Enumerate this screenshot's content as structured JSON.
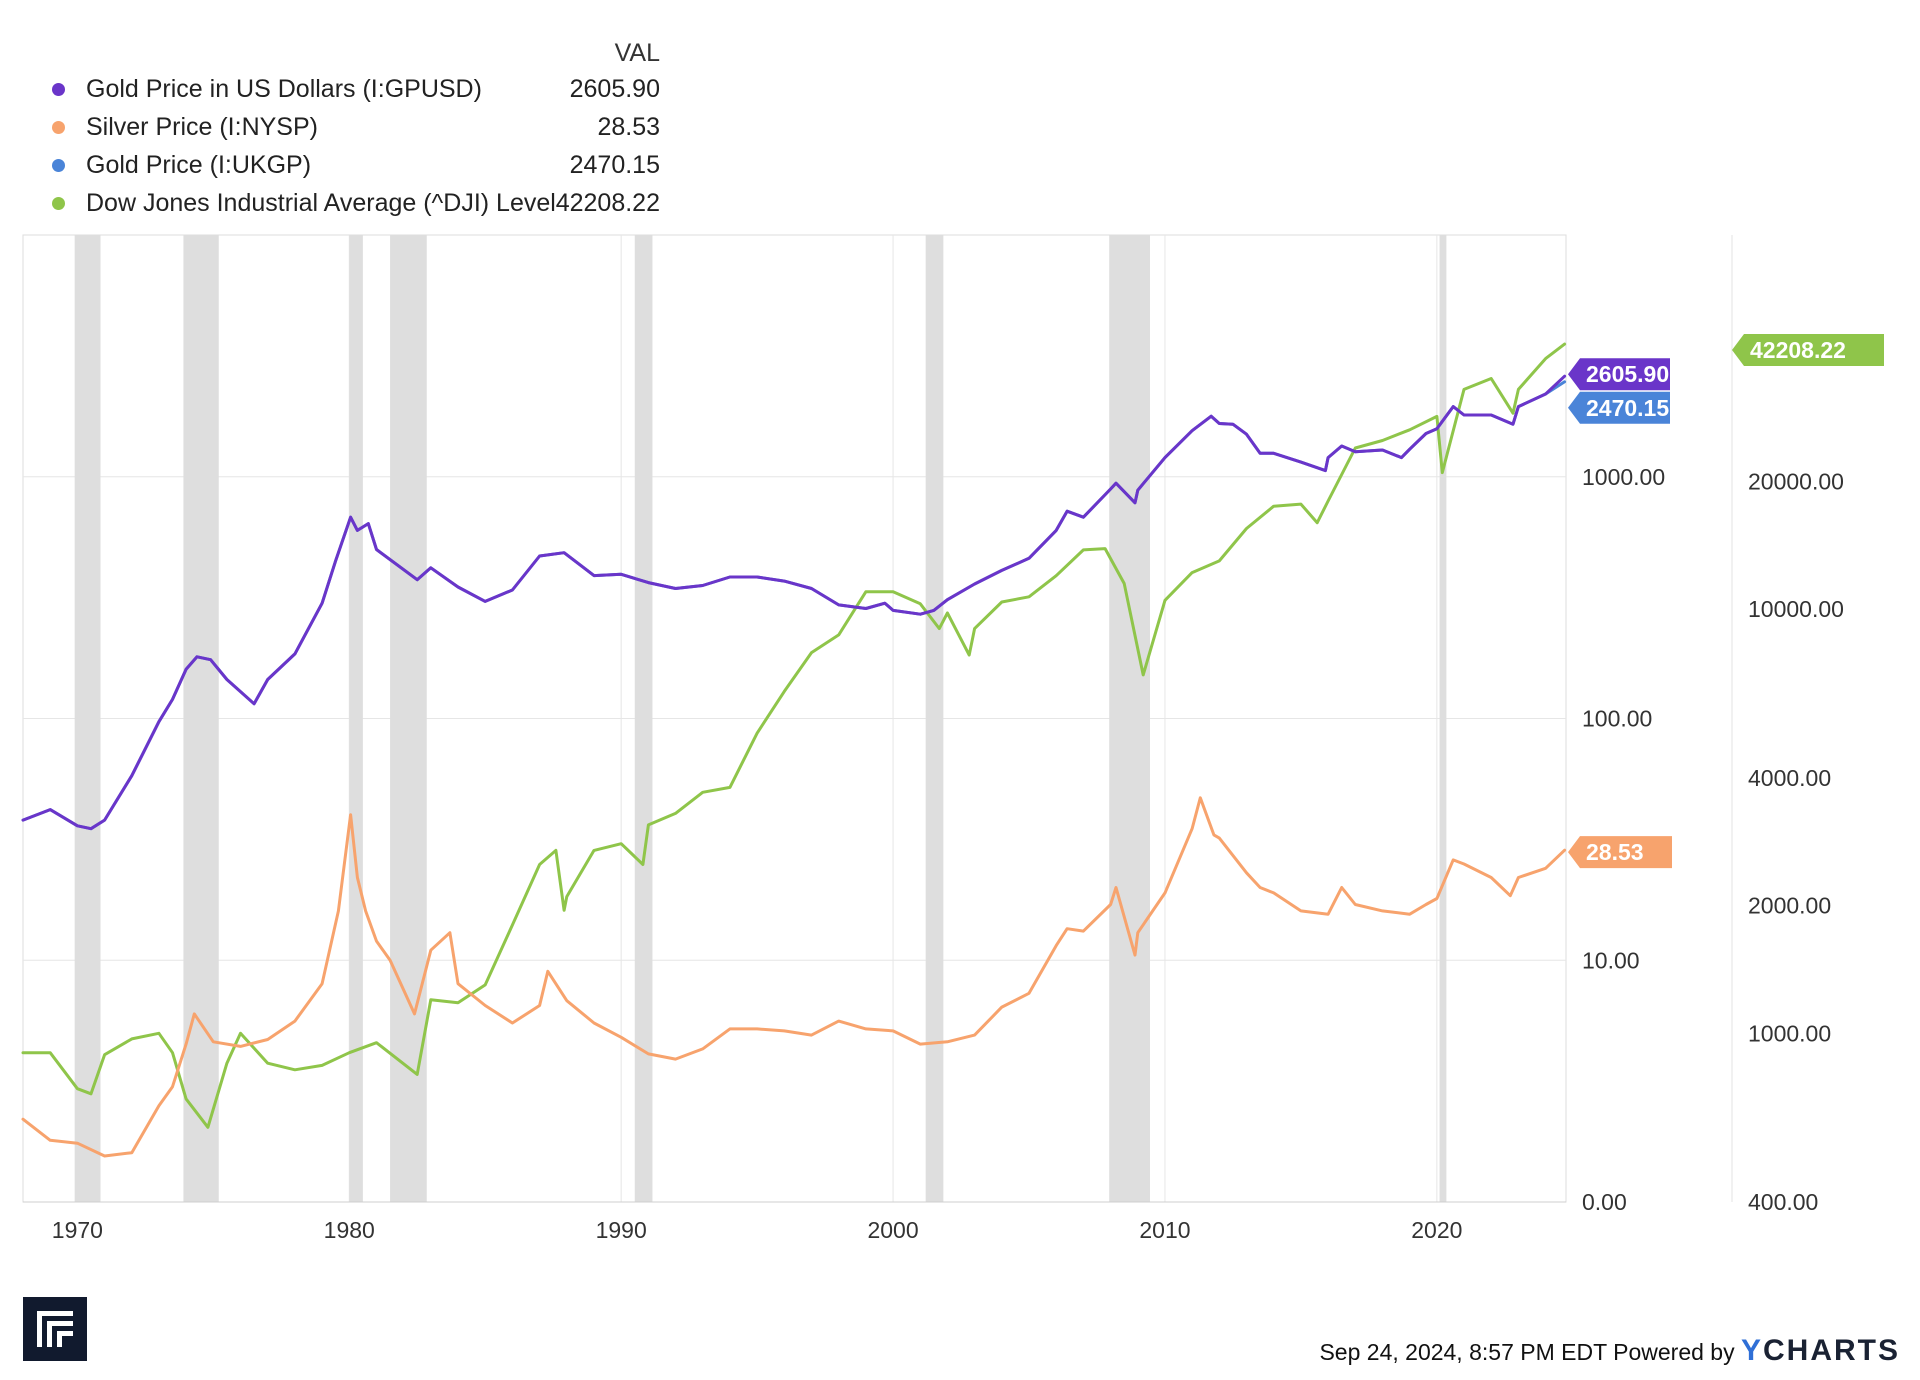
{
  "legend": {
    "header": "VAL",
    "items": [
      {
        "name": "Gold Price in US Dollars (I:GPUSD)",
        "value": "2605.90",
        "color": "#6a35c9"
      },
      {
        "name": "Silver Price (I:NYSP)",
        "value": "28.53",
        "color": "#f7a36d"
      },
      {
        "name": "Gold Price (I:UKGP)",
        "value": "2470.15",
        "color": "#4a84d8"
      },
      {
        "name": "Dow Jones Industrial Average (^DJI) Level",
        "value": "42208.22",
        "color": "#8fc54a"
      }
    ]
  },
  "footer": {
    "timestamp": "Sep 24, 2024, 8:57 PM EDT",
    "powered_by": "Powered by",
    "brand_first": "Y",
    "brand_rest": "CHARTS"
  },
  "chart_data": {
    "type": "line",
    "x_range": [
      1968.0,
      2024.75
    ],
    "x_ticks": [
      "1970",
      "1980",
      "1990",
      "2000",
      "2010",
      "2020"
    ],
    "x_tick_values": [
      1970,
      1980,
      1990,
      2000,
      2010,
      2020
    ],
    "y_left": {
      "scale": "log",
      "range": [
        1.0,
        10000.0
      ],
      "ticks": [
        "1000.00",
        "100.00",
        "10.00",
        "0.00"
      ],
      "tick_values": [
        1000,
        100,
        10,
        1
      ]
    },
    "y_right": {
      "scale": "log",
      "range": [
        400,
        76310
      ],
      "ticks": [
        "20000.00",
        "10000.00",
        "4000.00",
        "2000.00",
        "1000.00",
        "400.00"
      ],
      "tick_values": [
        20000,
        10000,
        4000,
        2000,
        1000,
        400
      ]
    },
    "recessions": [
      [
        1969.9,
        1970.85
      ],
      [
        1973.9,
        1975.2
      ],
      [
        1980.0,
        1980.5
      ],
      [
        1981.5,
        1982.85
      ],
      [
        1990.5,
        1991.15
      ],
      [
        2001.2,
        2001.85
      ],
      [
        2007.95,
        2009.45
      ],
      [
        2020.1,
        2020.35
      ]
    ],
    "series": [
      {
        "name": "Gold Price in US Dollars (I:GPUSD)",
        "axis": "left",
        "color": "#6a35c9",
        "end_label": "2605.90",
        "x": [
          1968,
          1969,
          1970,
          1970.5,
          1971,
          1972,
          1973,
          1973.5,
          1974,
          1974.4,
          1974.9,
          1975.5,
          1976.5,
          1977,
          1978,
          1979,
          1979.5,
          1980.05,
          1980.3,
          1980.7,
          1981,
          1982.5,
          1983,
          1984,
          1985,
          1986,
          1987,
          1987.9,
          1989,
          1990,
          1991,
          1992,
          1993,
          1994,
          1995,
          1996,
          1997,
          1998,
          1999,
          1999.7,
          2000,
          2001,
          2001.5,
          2002,
          2003,
          2004,
          2005,
          2006,
          2006.4,
          2007,
          2008,
          2008.2,
          2008.9,
          2009,
          2010,
          2011,
          2011.7,
          2012,
          2012.5,
          2013,
          2013.5,
          2014,
          2015,
          2015.9,
          2016,
          2016.5,
          2017,
          2018,
          2018.7,
          2019,
          2019.6,
          2020,
          2020.6,
          2021,
          2022,
          2022.8,
          2023,
          2024,
          2024.7
        ],
        "y": [
          38,
          42,
          36,
          35,
          38,
          58,
          97,
          120,
          160,
          180,
          175,
          145,
          115,
          145,
          185,
          300,
          450,
          680,
          600,
          640,
          500,
          375,
          420,
          350,
          305,
          340,
          470,
          485,
          390,
          395,
          365,
          345,
          355,
          385,
          385,
          370,
          345,
          295,
          285,
          300,
          280,
          270,
          280,
          310,
          360,
          410,
          460,
          600,
          720,
          680,
          890,
          940,
          780,
          880,
          1200,
          1550,
          1780,
          1660,
          1650,
          1500,
          1250,
          1250,
          1150,
          1060,
          1200,
          1340,
          1270,
          1290,
          1200,
          1300,
          1510,
          1580,
          1950,
          1800,
          1800,
          1650,
          1950,
          2200,
          2605.9
        ]
      },
      {
        "name": "Gold Price (I:UKGP)",
        "axis": "left",
        "color": "#4a84d8",
        "end_label": "2470.15",
        "x": [
          1968,
          1969,
          1970,
          1970.5,
          1971,
          1972,
          1973,
          1973.5,
          1974,
          1974.4,
          1974.9,
          1975.5,
          1976.5,
          1977,
          1978,
          1979,
          1979.5,
          1980.05,
          1980.3,
          1980.7,
          1981,
          1982.5,
          1983,
          1984,
          1985,
          1986,
          1987,
          1987.9,
          1989,
          1990,
          1991,
          1992,
          1993,
          1994,
          1995,
          1996,
          1997,
          1998,
          1999,
          1999.7,
          2000,
          2001,
          2001.5,
          2002,
          2003,
          2004,
          2005,
          2006,
          2006.4,
          2007,
          2008,
          2008.2,
          2008.9,
          2009,
          2010,
          2011,
          2011.7,
          2012,
          2012.5,
          2013,
          2013.5,
          2014,
          2015,
          2015.9,
          2016,
          2016.5,
          2017,
          2018,
          2018.7,
          2019,
          2019.6,
          2020,
          2020.6,
          2021,
          2022,
          2022.8,
          2023,
          2024,
          2024.7
        ],
        "y": [
          38,
          42,
          36,
          35,
          38,
          58,
          97,
          120,
          160,
          180,
          175,
          145,
          115,
          145,
          185,
          300,
          450,
          680,
          600,
          640,
          500,
          375,
          420,
          350,
          305,
          340,
          470,
          485,
          390,
          395,
          365,
          345,
          355,
          385,
          385,
          370,
          345,
          295,
          285,
          300,
          280,
          270,
          280,
          310,
          360,
          410,
          460,
          600,
          720,
          680,
          890,
          940,
          780,
          880,
          1200,
          1550,
          1780,
          1660,
          1650,
          1500,
          1250,
          1250,
          1150,
          1060,
          1200,
          1340,
          1270,
          1290,
          1200,
          1300,
          1510,
          1580,
          1950,
          1800,
          1800,
          1650,
          1950,
          2200,
          2470.15
        ]
      },
      {
        "name": "Silver Price (I:NYSP)",
        "axis": "left",
        "color": "#f7a36d",
        "end_label": "28.53",
        "x": [
          1968,
          1969,
          1970,
          1971,
          1972,
          1973,
          1973.5,
          1974,
          1974.3,
          1975,
          1976,
          1977,
          1978,
          1979,
          1979.6,
          1980.05,
          1980.3,
          1980.6,
          1981,
          1981.5,
          1982.4,
          1983,
          1983.7,
          1984,
          1985,
          1986,
          1987,
          1987.3,
          1988,
          1989,
          1990,
          1991,
          1992,
          1993,
          1994,
          1995,
          1996,
          1997,
          1998,
          1999,
          2000,
          2001,
          2002,
          2003,
          2004,
          2005,
          2006,
          2006.4,
          2007,
          2008,
          2008.2,
          2008.9,
          2009,
          2010,
          2011,
          2011.3,
          2011.8,
          2012,
          2013,
          2013.5,
          2014,
          2015,
          2016,
          2016.5,
          2017,
          2018,
          2019,
          2019.6,
          2020,
          2020.6,
          2021,
          2022,
          2022.7,
          2023,
          2024,
          2024.7
        ],
        "y": [
          2.2,
          1.8,
          1.75,
          1.55,
          1.6,
          2.5,
          3,
          4.5,
          6,
          4.6,
          4.4,
          4.7,
          5.6,
          8,
          16,
          40,
          22,
          16,
          12,
          10,
          6,
          11,
          13,
          8,
          6.5,
          5.5,
          6.5,
          9,
          6.8,
          5.5,
          4.8,
          4.1,
          3.9,
          4.3,
          5.2,
          5.2,
          5.1,
          4.9,
          5.6,
          5.2,
          5.1,
          4.5,
          4.6,
          4.9,
          6.4,
          7.3,
          11.5,
          13.5,
          13.2,
          17,
          20,
          10.5,
          13,
          19,
          35,
          47,
          33,
          32,
          23,
          20,
          19,
          16,
          15.5,
          20,
          17,
          16,
          15.5,
          17,
          18,
          26,
          25,
          22,
          18.5,
          22,
          24,
          28.53
        ]
      },
      {
        "name": "Dow Jones Industrial Average (^DJI) Level",
        "axis": "right",
        "color": "#8fc54a",
        "end_label": "42208.22",
        "x": [
          1968,
          1969,
          1970,
          1970.5,
          1971,
          1972,
          1973,
          1973.5,
          1974,
          1974.8,
          1975.5,
          1976,
          1977,
          1978,
          1979,
          1980,
          1981,
          1982.5,
          1983,
          1984,
          1985,
          1986,
          1987,
          1987.6,
          1987.9,
          1988,
          1989,
          1990,
          1990.8,
          1991,
          1992,
          1993,
          1994,
          1995,
          1996,
          1997,
          1998,
          1999,
          2000,
          2001,
          2001.7,
          2002,
          2002.8,
          2003,
          2004,
          2005,
          2006,
          2007,
          2007.8,
          2008.5,
          2009.2,
          2010,
          2011,
          2012,
          2013,
          2014,
          2015,
          2015.6,
          2016,
          2017,
          2018,
          2019,
          2020,
          2020.2,
          2021,
          2022,
          2022.8,
          2023,
          2024,
          2024.7
        ],
        "y": [
          900,
          900,
          740,
          720,
          890,
          970,
          1000,
          900,
          700,
          600,
          850,
          1000,
          850,
          820,
          840,
          900,
          950,
          800,
          1200,
          1180,
          1300,
          1800,
          2500,
          2700,
          1950,
          2100,
          2700,
          2800,
          2500,
          3100,
          3300,
          3700,
          3800,
          5100,
          6400,
          7900,
          8700,
          11000,
          11000,
          10300,
          9000,
          9800,
          7800,
          9000,
          10400,
          10700,
          12000,
          13800,
          13900,
          11500,
          7000,
          10500,
          12200,
          13000,
          15500,
          17500,
          17700,
          16000,
          18000,
          24000,
          25000,
          26500,
          28500,
          21000,
          33000,
          35000,
          29000,
          33000,
          39000,
          42208.22
        ]
      }
    ]
  }
}
